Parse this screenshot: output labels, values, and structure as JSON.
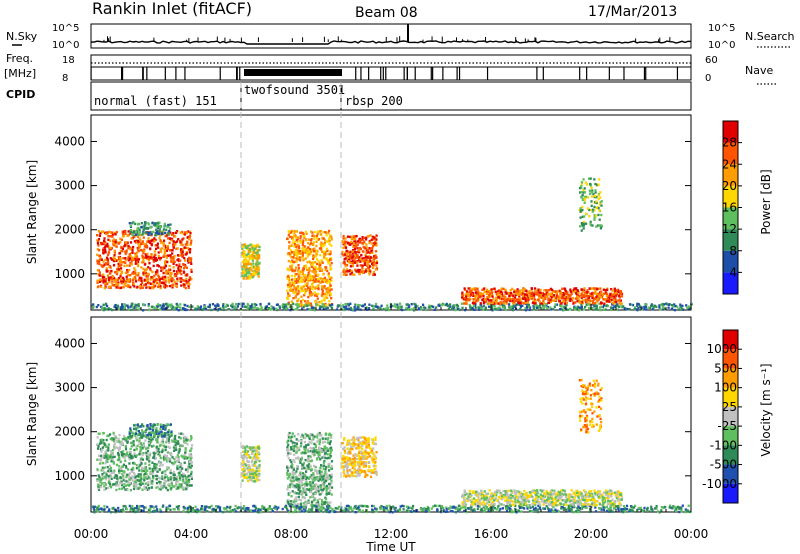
{
  "header": {
    "station": "Rankin Inlet (fitACF)",
    "beam": "Beam 08",
    "date": "17/Mar/2013"
  },
  "status_panel": {
    "nsky_label": "N.Sky",
    "nsky_ticks": [
      "10^5",
      "10^0"
    ],
    "nsearch_label": "N.Search",
    "nsearch_ticks": [
      "10^5",
      "10^0"
    ],
    "freq_label": "Freq.",
    "freq_unit": "[MHz]",
    "freq_ticks": [
      "18",
      "8"
    ],
    "nave_label": "Nave",
    "nave_ticks": [
      "60",
      "0"
    ],
    "cpid_label": "CPID",
    "modes": [
      {
        "name": "normal (fast) 151",
        "start": 0,
        "end": 6
      },
      {
        "name": "twofsound 3501",
        "start": 6,
        "end": 10
      },
      {
        "name": "rbsp 200",
        "start": 10,
        "end": 24
      }
    ]
  },
  "chart_data": [
    {
      "type": "heatmap",
      "title": "",
      "xlabel": "Time UT",
      "ylabel": "Slant Range [km]",
      "x_ticks": [
        "00:00",
        "04:00",
        "08:00",
        "12:00",
        "16:00",
        "20:00",
        "00:00"
      ],
      "xlim": [
        0,
        24
      ],
      "ylim": [
        180,
        4600
      ],
      "y_ticks": [
        "1000",
        "2000",
        "3000",
        "4000"
      ],
      "y_tick_values": [
        1000,
        2000,
        3000,
        4000
      ],
      "colorbar": {
        "label": "Power [dB]",
        "tick_labels": [
          "4",
          "8",
          "12",
          "16",
          "20",
          "24",
          "28"
        ],
        "colors": [
          "#1a1aff",
          "#1e4fa8",
          "#2e8b57",
          "#5fbf5f",
          "#ffd700",
          "#ff9c00",
          "#ff5500",
          "#e00000"
        ]
      },
      "mode_boundaries": [
        6,
        10
      ]
    },
    {
      "type": "heatmap",
      "title": "",
      "xlabel": "Time UT",
      "ylabel": "Slant Range [km]",
      "x_ticks": [
        "00:00",
        "04:00",
        "08:00",
        "12:00",
        "16:00",
        "20:00",
        "00:00"
      ],
      "xlim": [
        0,
        24
      ],
      "ylim": [
        180,
        4600
      ],
      "y_ticks": [
        "1000",
        "2000",
        "3000",
        "4000"
      ],
      "y_tick_values": [
        1000,
        2000,
        3000,
        4000
      ],
      "colorbar": {
        "label": "Velocity [m s⁻¹]",
        "tick_labels": [
          "1000",
          "500",
          "100",
          "25",
          "-25",
          "-100",
          "-500",
          "-1000"
        ],
        "colors": [
          "#1a1aff",
          "#2050b0",
          "#2e8b57",
          "#5fbf5f",
          "#c0c0c0",
          "#ffd700",
          "#ff9c00",
          "#ff5500",
          "#e00000"
        ]
      },
      "mode_boundaries": [
        6,
        10
      ]
    }
  ]
}
